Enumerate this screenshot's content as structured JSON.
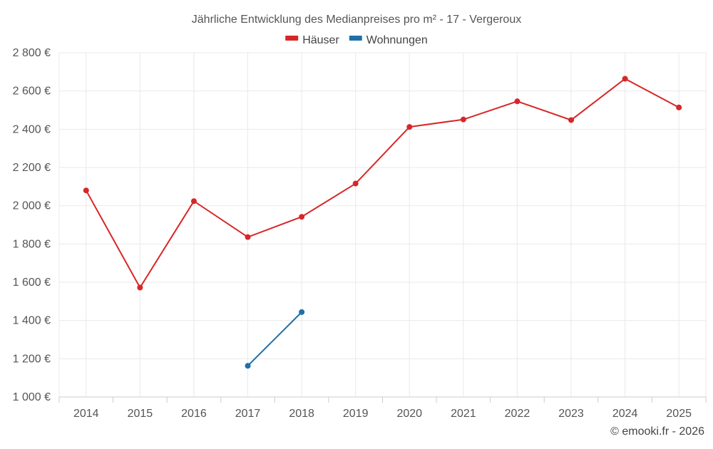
{
  "chart_data": {
    "type": "line",
    "title": "Jährliche Entwicklung des Medianpreises pro m² - 17 - Vergeroux",
    "categories": [
      "2014",
      "2015",
      "2016",
      "2017",
      "2018",
      "2019",
      "2020",
      "2021",
      "2022",
      "2023",
      "2024",
      "2025"
    ],
    "series": [
      {
        "name": "Häuser",
        "color": "#d62728",
        "values": [
          2080,
          1572,
          2024,
          1836,
          1942,
          2116,
          2412,
          2451,
          2546,
          2448,
          2664,
          2514
        ]
      },
      {
        "name": "Wohnungen",
        "color": "#1f6fa8",
        "values": [
          null,
          null,
          null,
          1163,
          1444,
          null,
          null,
          null,
          null,
          null,
          null,
          null
        ]
      }
    ],
    "ylim": [
      1000,
      2800
    ],
    "yticks": [
      1000,
      1200,
      1400,
      1600,
      1800,
      2000,
      2200,
      2400,
      2600,
      2800
    ],
    "ytick_labels": [
      "1 000 €",
      "1 200 €",
      "1 400 €",
      "1 600 €",
      "1 800 €",
      "2 000 €",
      "2 200 €",
      "2 400 €",
      "2 600 €",
      "2 800 €"
    ],
    "grid": true,
    "legend_position": "top-center"
  },
  "credit": "© emooki.fr - 2026"
}
